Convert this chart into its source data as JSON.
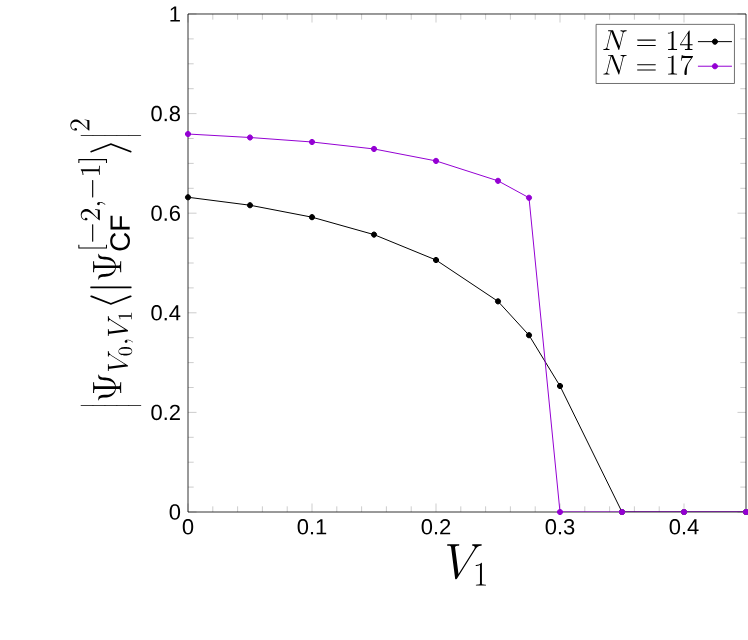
{
  "chart_data": {
    "type": "line",
    "xlabel": "V_1",
    "ylabel": "\\left|\\Psi_{V_0,V_1}\\langle|\\Psi^{[-2,-1]}_{\\mathrm{CF}}\\rangle\\right|^2",
    "x": [
      0,
      0.05,
      0.1,
      0.15,
      0.2,
      0.25,
      0.275,
      0.3,
      0.35,
      0.4,
      0.45
    ],
    "series": [
      {
        "name": "N=14",
        "color": "#000000",
        "values": [
          0.632,
          0.616,
          0.592,
          0.557,
          0.506,
          0.423,
          0.355,
          0.253,
          0,
          0,
          0
        ]
      },
      {
        "name": "N=17",
        "color": "#9400d3",
        "values": [
          0.759,
          0.752,
          0.743,
          0.729,
          0.705,
          0.665,
          0.631,
          0,
          0,
          0,
          0
        ]
      }
    ],
    "xlim": [
      0,
      0.45
    ],
    "ylim": [
      0,
      1
    ],
    "xticks": [
      0,
      0.1,
      0.2,
      0.3,
      0.4
    ],
    "yticks": [
      0,
      0.2,
      0.4,
      0.6,
      0.8,
      1
    ],
    "grid": false,
    "legend": "top right",
    "marker": "circle",
    "line_style": "solid"
  }
}
